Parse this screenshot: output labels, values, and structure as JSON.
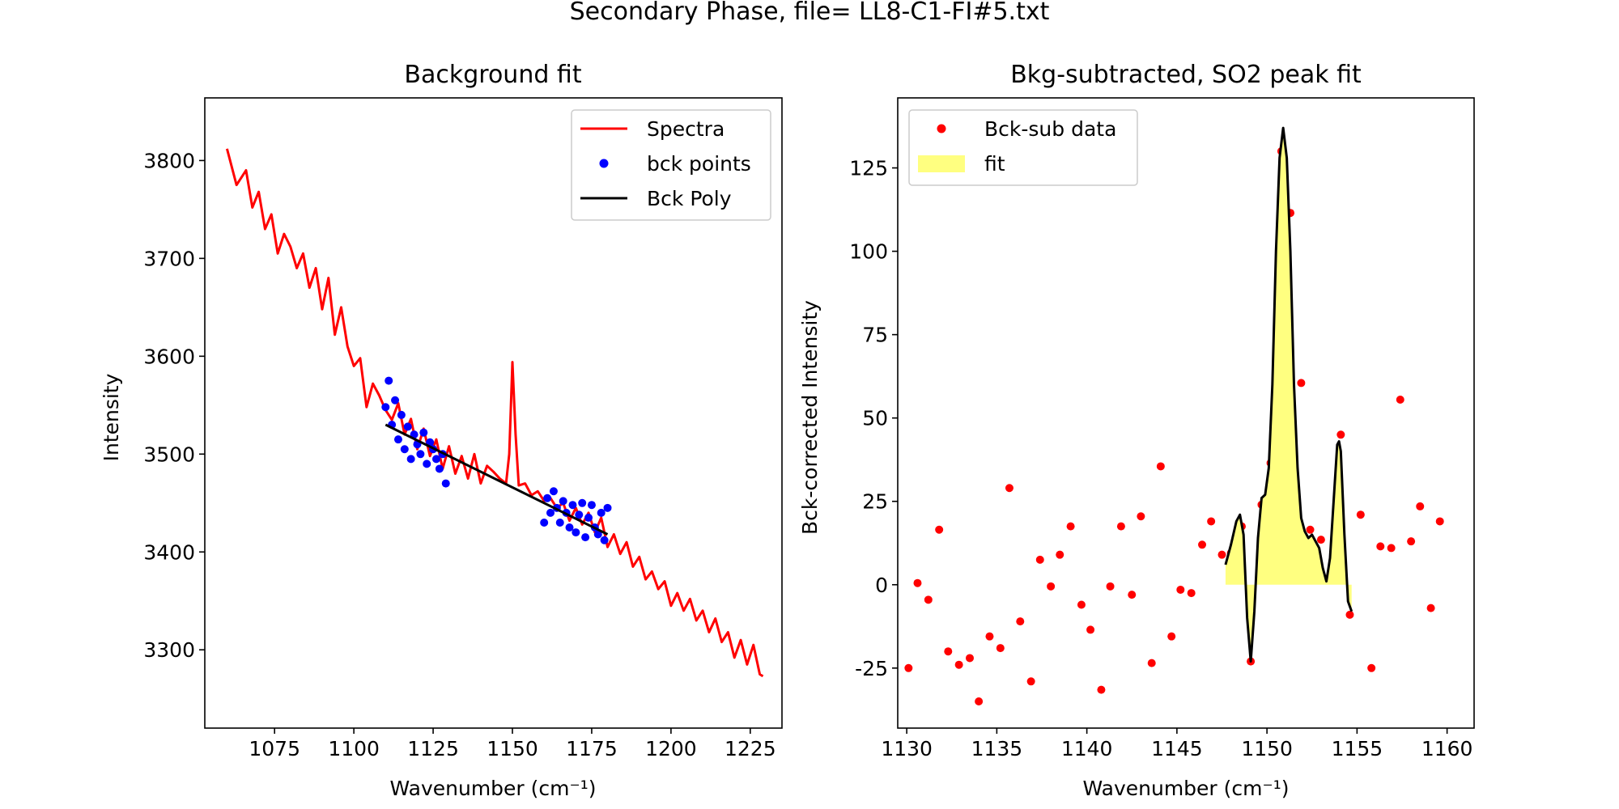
{
  "figure": {
    "title": "Secondary Phase, file= LL8-C1-FI#5.txt"
  },
  "chart_data": [
    {
      "type": "line",
      "title": "Background fit",
      "xlabel": "Wavenumber (cm⁻¹)",
      "ylabel": "Intensity",
      "xlim": [
        1053,
        1235
      ],
      "ylim": [
        3220,
        3864
      ],
      "xticks": [
        1075,
        1100,
        1125,
        1150,
        1175,
        1200,
        1225
      ],
      "yticks": [
        3300,
        3400,
        3500,
        3600,
        3700,
        3800
      ],
      "grid": false,
      "legend_position": "top-right",
      "series": [
        {
          "name": "Spectra",
          "kind": "line",
          "color": "#ff0000",
          "x": [
            1060,
            1063,
            1066,
            1068,
            1070,
            1072,
            1074,
            1076,
            1078,
            1080,
            1082,
            1084,
            1086,
            1088,
            1090,
            1092,
            1094,
            1096,
            1098,
            1100,
            1102,
            1104,
            1106,
            1108,
            1110,
            1112,
            1114,
            1116,
            1118,
            1120,
            1122,
            1124,
            1126,
            1128,
            1130,
            1132,
            1134,
            1136,
            1138,
            1140,
            1142,
            1144,
            1146,
            1148,
            1149,
            1150,
            1151,
            1152,
            1154,
            1156,
            1158,
            1160,
            1162,
            1164,
            1166,
            1168,
            1170,
            1172,
            1174,
            1176,
            1178,
            1180,
            1182,
            1184,
            1186,
            1188,
            1190,
            1192,
            1194,
            1196,
            1198,
            1200,
            1202,
            1204,
            1206,
            1208,
            1210,
            1212,
            1214,
            1216,
            1218,
            1220,
            1222,
            1224,
            1226,
            1228,
            1229
          ],
          "y": [
            3812,
            3775,
            3790,
            3752,
            3768,
            3730,
            3745,
            3705,
            3725,
            3712,
            3690,
            3705,
            3670,
            3690,
            3648,
            3680,
            3622,
            3650,
            3610,
            3590,
            3598,
            3548,
            3572,
            3560,
            3545,
            3535,
            3552,
            3520,
            3536,
            3505,
            3526,
            3498,
            3515,
            3485,
            3508,
            3480,
            3498,
            3475,
            3500,
            3470,
            3488,
            3482,
            3475,
            3470,
            3500,
            3594,
            3520,
            3468,
            3470,
            3458,
            3462,
            3452,
            3455,
            3445,
            3450,
            3432,
            3445,
            3428,
            3440,
            3420,
            3435,
            3405,
            3418,
            3398,
            3410,
            3385,
            3395,
            3372,
            3380,
            3362,
            3370,
            3345,
            3358,
            3340,
            3352,
            3330,
            3340,
            3318,
            3332,
            3308,
            3318,
            3292,
            3310,
            3285,
            3305,
            3275,
            3273
          ]
        },
        {
          "name": "bck points",
          "kind": "scatter",
          "color": "#0000ff",
          "x": [
            1110,
            1111,
            1112,
            1113,
            1114,
            1115,
            1116,
            1117,
            1118,
            1119,
            1120,
            1121,
            1122,
            1123,
            1124,
            1125,
            1126,
            1127,
            1128,
            1129,
            1160,
            1161,
            1162,
            1163,
            1164,
            1165,
            1166,
            1167,
            1168,
            1169,
            1170,
            1171,
            1172,
            1173,
            1174,
            1175,
            1176,
            1177,
            1178,
            1179,
            1180
          ],
          "y": [
            3548,
            3575,
            3530,
            3555,
            3515,
            3540,
            3505,
            3528,
            3495,
            3520,
            3510,
            3500,
            3522,
            3490,
            3512,
            3505,
            3495,
            3485,
            3500,
            3470,
            3430,
            3455,
            3440,
            3462,
            3445,
            3430,
            3452,
            3440,
            3425,
            3448,
            3420,
            3438,
            3450,
            3415,
            3435,
            3448,
            3425,
            3418,
            3440,
            3412,
            3445
          ]
        },
        {
          "name": "Bck Poly",
          "kind": "line",
          "color": "#000000",
          "x": [
            1110,
            1180
          ],
          "y": [
            3530,
            3418
          ]
        }
      ]
    },
    {
      "type": "scatter",
      "title": "Bkg-subtracted, SO2 peak fit",
      "xlabel": "Wavenumber (cm⁻¹)",
      "ylabel": "Bck-corrected Intensity",
      "xlim": [
        1129.5,
        1161.5
      ],
      "ylim": [
        -43,
        146
      ],
      "xticks": [
        1130,
        1135,
        1140,
        1145,
        1150,
        1155,
        1160
      ],
      "yticks": [
        -25,
        0,
        25,
        50,
        75,
        100,
        125
      ],
      "grid": false,
      "legend_position": "top-left",
      "series": [
        {
          "name": "Bck-sub data",
          "kind": "scatter",
          "color": "#ff0000",
          "x": [
            1130.1,
            1130.6,
            1131.2,
            1131.8,
            1132.3,
            1132.9,
            1133.5,
            1134.0,
            1134.6,
            1135.2,
            1135.7,
            1136.3,
            1136.9,
            1137.4,
            1138.0,
            1138.5,
            1139.1,
            1139.7,
            1140.2,
            1140.8,
            1141.3,
            1141.9,
            1142.5,
            1143.0,
            1143.6,
            1144.1,
            1144.7,
            1145.2,
            1145.8,
            1146.4,
            1146.9,
            1147.5,
            1148.0,
            1148.6,
            1149.1,
            1149.7,
            1150.2,
            1150.8,
            1151.3,
            1151.9,
            1152.4,
            1153.0,
            1153.5,
            1154.1,
            1154.6,
            1155.2,
            1155.8,
            1156.3,
            1156.9,
            1157.4,
            1158.0,
            1158.5,
            1159.1,
            1159.6
          ],
          "y": [
            -25,
            0.5,
            -4.5,
            16.5,
            -20,
            -24,
            -22,
            -35,
            -15.5,
            -19,
            29,
            -11,
            -29,
            7.5,
            -0.5,
            9,
            17.5,
            -6,
            -13.5,
            -31.5,
            -0.5,
            17.5,
            -3,
            20.5,
            -23.5,
            35.5,
            -15.5,
            -1.5,
            -2.5,
            12,
            19,
            9,
            9.5,
            17.5,
            -23,
            24,
            36.5,
            130,
            111.5,
            60.5,
            16.5,
            13.5,
            2.5,
            45,
            -9,
            21,
            -25,
            11.5,
            11,
            55.5,
            13,
            23.5,
            -7,
            19
          ]
        },
        {
          "name": "fit",
          "kind": "line",
          "color": "#000000",
          "fill": "#ffff80",
          "x": [
            1147.7,
            1148.0,
            1148.3,
            1148.5,
            1148.7,
            1148.9,
            1149.1,
            1149.3,
            1149.5,
            1149.7,
            1149.9,
            1150.1,
            1150.3,
            1150.5,
            1150.7,
            1150.9,
            1151.1,
            1151.3,
            1151.5,
            1151.7,
            1151.9,
            1152.1,
            1152.3,
            1152.5,
            1152.7,
            1152.9,
            1153.1,
            1153.3,
            1153.5,
            1153.7,
            1153.9,
            1154.0,
            1154.1,
            1154.3,
            1154.5,
            1154.7
          ],
          "y": [
            6,
            12,
            19,
            21,
            15,
            -10,
            -23,
            -8,
            14,
            26,
            27,
            35,
            60,
            100,
            128,
            137,
            128,
            100,
            60,
            35,
            20,
            16,
            14,
            15,
            13,
            11,
            5,
            1,
            8,
            25,
            42,
            43,
            40,
            15,
            -5,
            -8
          ]
        }
      ]
    }
  ]
}
